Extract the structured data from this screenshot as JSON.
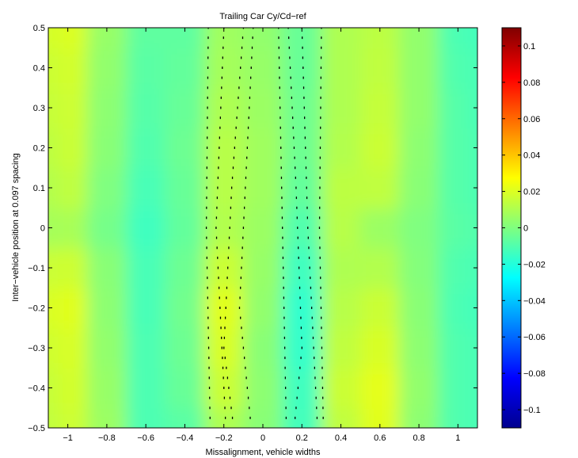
{
  "chart_data": {
    "type": "heatmap",
    "title": "Trailing Car Cy/Cd−ref",
    "xlabel": "Missalignment, vehicle widths",
    "ylabel": "Inter−vehicle position at 0.097 spacing",
    "xlim": [
      -1.1,
      1.1
    ],
    "ylim": [
      -0.5,
      0.5
    ],
    "x_ticks": [
      -1,
      -0.8,
      -0.6,
      -0.4,
      -0.2,
      0,
      0.2,
      0.4,
      0.6,
      0.8,
      1
    ],
    "x_tick_labels": [
      "−1",
      "−0.8",
      "−0.6",
      "−0.4",
      "−0.2",
      "0",
      "0.2",
      "0.4",
      "0.6",
      "0.8",
      "1"
    ],
    "y_ticks": [
      -0.5,
      -0.4,
      -0.3,
      -0.2,
      -0.1,
      0,
      0.1,
      0.2,
      0.3,
      0.4,
      0.5
    ],
    "y_tick_labels": [
      "−0.5",
      "−0.4",
      "−0.3",
      "−0.2",
      "−0.1",
      "0",
      "0.1",
      "0.2",
      "0.3",
      "0.4",
      "0.5"
    ],
    "colorbar": {
      "colormap": "jet",
      "clim": [
        -0.11,
        0.11
      ],
      "ticks": [
        -0.1,
        -0.08,
        -0.06,
        -0.04,
        -0.02,
        0,
        0.02,
        0.04,
        0.06,
        0.08,
        0.1
      ],
      "tick_labels": [
        "−0.1",
        "−0.08",
        "−0.06",
        "−0.04",
        "−0.02",
        "0",
        "0.02",
        "0.04",
        "0.06",
        "0.08",
        "0.1"
      ]
    },
    "grid": false,
    "x": [
      -1.1,
      -1.0,
      -0.8,
      -0.6,
      -0.4,
      -0.2,
      0.0,
      0.2,
      0.4,
      0.6,
      0.8,
      1.0,
      1.1
    ],
    "y": [
      -0.5,
      -0.4,
      -0.3,
      -0.2,
      -0.1,
      0.0,
      0.1,
      0.2,
      0.3,
      0.4,
      0.5
    ],
    "z": [
      [
        0.014,
        0.017,
        0.006,
        -0.011,
        -0.008,
        0.01,
        0.002,
        -0.013,
        0.014,
        0.021,
        0.003,
        -0.01,
        -0.012
      ],
      [
        0.015,
        0.018,
        0.005,
        -0.011,
        -0.005,
        0.016,
        0.003,
        -0.014,
        0.016,
        0.022,
        0.004,
        -0.01,
        -0.012
      ],
      [
        0.017,
        0.019,
        0.004,
        -0.011,
        -0.004,
        0.019,
        0.002,
        -0.016,
        0.014,
        0.019,
        0.003,
        -0.01,
        -0.012
      ],
      [
        0.019,
        0.021,
        0.003,
        -0.012,
        -0.003,
        0.021,
        0.004,
        -0.017,
        0.012,
        0.016,
        0.002,
        -0.011,
        -0.013
      ],
      [
        0.016,
        0.017,
        0.002,
        -0.012,
        -0.004,
        0.016,
        0.005,
        -0.014,
        0.01,
        0.011,
        0.001,
        -0.01,
        -0.012
      ],
      [
        0.008,
        0.009,
        -0.002,
        -0.014,
        -0.006,
        0.011,
        0.006,
        -0.01,
        0.012,
        0.006,
        0.0,
        -0.008,
        -0.01
      ],
      [
        0.011,
        0.014,
        0.0,
        -0.012,
        -0.005,
        0.012,
        0.007,
        -0.006,
        0.013,
        0.014,
        0.002,
        -0.009,
        -0.011
      ],
      [
        0.013,
        0.016,
        0.002,
        -0.01,
        -0.004,
        0.012,
        0.007,
        -0.004,
        0.011,
        0.016,
        0.003,
        -0.009,
        -0.011
      ],
      [
        0.015,
        0.017,
        0.003,
        -0.009,
        -0.005,
        0.01,
        0.006,
        -0.004,
        0.01,
        0.015,
        0.004,
        -0.009,
        -0.012
      ],
      [
        0.016,
        0.018,
        0.004,
        -0.008,
        -0.006,
        0.008,
        0.005,
        -0.005,
        0.01,
        0.014,
        0.004,
        -0.01,
        -0.012
      ],
      [
        0.018,
        0.02,
        0.005,
        -0.007,
        -0.007,
        0.007,
        0.004,
        -0.005,
        0.01,
        0.013,
        0.004,
        -0.011,
        -0.013
      ]
    ]
  }
}
